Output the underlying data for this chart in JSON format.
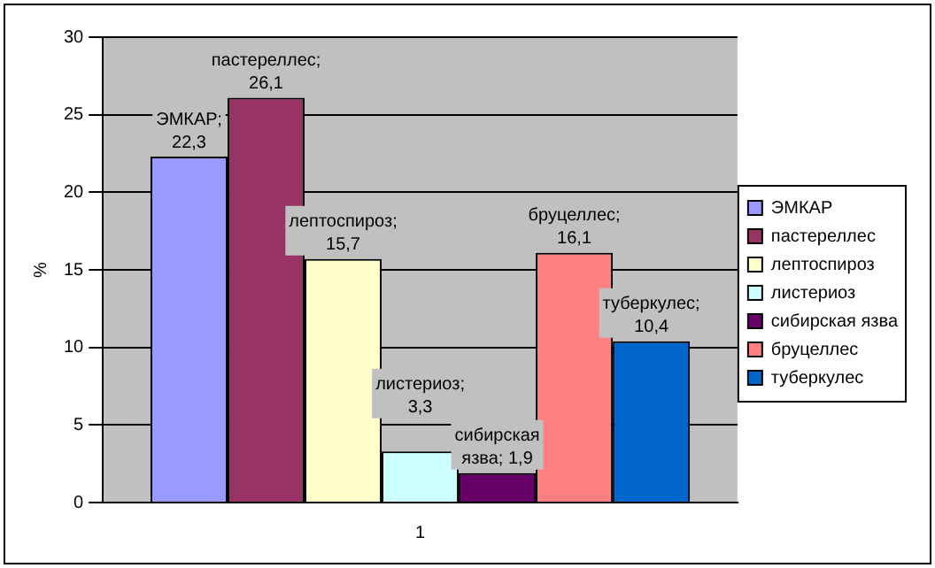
{
  "chart_data": {
    "type": "bar",
    "ylabel": "%",
    "categories": [
      "1"
    ],
    "series": [
      {
        "name": "ЭМКАР",
        "color": "#9999ff",
        "values": [
          22.3
        ],
        "value_labels": [
          "ЭМКАР; 22,3"
        ]
      },
      {
        "name": "пастереллес",
        "color": "#993366",
        "values": [
          26.1
        ],
        "value_labels": [
          "пастереллес; 26,1"
        ]
      },
      {
        "name": "лептоспироз",
        "color": "#ffffcc",
        "values": [
          15.7
        ],
        "value_labels": [
          "лептоспироз; 15,7"
        ]
      },
      {
        "name": "листериоз",
        "color": "#ccffff",
        "values": [
          3.3
        ],
        "value_labels": [
          "листериоз; 3,3"
        ]
      },
      {
        "name": "сибирская язва",
        "color": "#660066",
        "values": [
          1.9
        ],
        "value_labels": [
          "сибирская язва; 1,9"
        ]
      },
      {
        "name": "бруцеллес",
        "color": "#ff8080",
        "values": [
          16.1
        ],
        "value_labels": [
          "бруцеллес; 16,1"
        ]
      },
      {
        "name": "туберкулес",
        "color": "#0066cc",
        "values": [
          10.4
        ],
        "value_labels": [
          "туберкулес; 10,4"
        ]
      }
    ],
    "ylim": [
      0,
      30
    ],
    "yticks": [
      0,
      5,
      10,
      15,
      20,
      25,
      30
    ],
    "grid": "y",
    "legend": "right"
  }
}
